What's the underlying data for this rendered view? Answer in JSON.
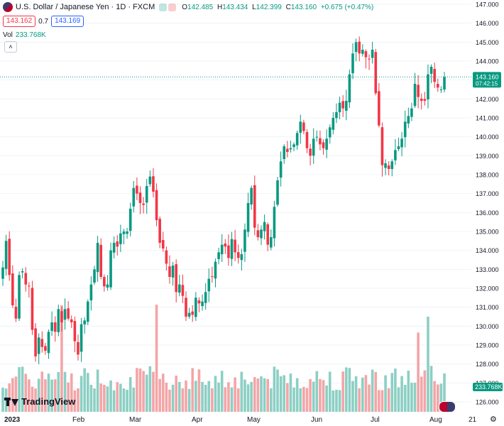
{
  "header": {
    "title": "U.S. Dollar / Japanese Yen · 1D · FXCM",
    "ohlc": [
      {
        "k": "O",
        "v": "142.485"
      },
      {
        "k": "H",
        "v": "143.434"
      },
      {
        "k": "L",
        "v": "142.399"
      },
      {
        "k": "C",
        "v": "143.160"
      },
      {
        "k": "",
        "v": "+0.675 (+0.47%)"
      }
    ]
  },
  "trade": {
    "sell": "143.162",
    "spread": "0.7",
    "buy": "143.169"
  },
  "volume": {
    "label": "Vol",
    "value": "233.768K"
  },
  "branding": {
    "name": "TradingView"
  },
  "colors": {
    "up": "#089981",
    "down": "#f23645",
    "upVol": "#8ccfc4",
    "downVol": "#f4a5a7",
    "grid": "#f0f3fa"
  },
  "chart_data": {
    "type": "candlestick",
    "title": "U.S. Dollar / Japanese Yen · 1D · FXCM",
    "ylim": [
      126,
      147
    ],
    "y_ticks": [
      "147.000",
      "146.000",
      "145.000",
      "144.000",
      "143.000",
      "142.000",
      "141.000",
      "140.000",
      "139.000",
      "138.000",
      "137.000",
      "136.000",
      "135.000",
      "134.000",
      "133.000",
      "132.000",
      "131.000",
      "130.000",
      "129.000",
      "128.000",
      "127.000",
      "126.000"
    ],
    "x_ticks": [
      "2023",
      "Feb",
      "Mar",
      "Apr",
      "May",
      "Jun",
      "Jul",
      "Aug",
      "21"
    ],
    "last_price_label": "143.160",
    "countdown_label": "07:42:15",
    "volume_label": "233.768K",
    "closes": [
      133.1,
      134.5,
      132.7,
      131.1,
      130.4,
      132.7,
      132.9,
      132.2,
      132.1,
      129.8,
      128.4,
      129.4,
      128.9,
      128.7,
      129.7,
      130.2,
      129.7,
      130.9,
      130.2,
      130.9,
      130.4,
      130.2,
      129.2,
      128.5,
      130.1,
      130.3,
      131.3,
      132.2,
      133.0,
      134.4,
      132.6,
      132.1,
      132.2,
      134.0,
      134.4,
      134.2,
      134.9,
      135.0,
      135.0,
      136.2,
      137.3,
      137.0,
      136.5,
      136.4,
      137.4,
      137.9,
      137.1,
      135.6,
      134.4,
      134.1,
      133.3,
      132.6,
      133.2,
      131.8,
      132.2,
      131.6,
      130.5,
      130.7,
      130.6,
      131.5,
      131.2,
      131.3,
      131.8,
      132.5,
      132.6,
      133.4,
      133.9,
      134.3,
      134.2,
      133.6,
      134.6,
      133.9,
      133.6,
      133.8,
      135.1,
      136.5,
      137.3,
      135.2,
      134.7,
      135.1,
      135.5,
      134.3,
      134.7,
      136.3,
      137.7,
      138.7,
      139.5,
      139.2,
      139.4,
      139.6,
      140.2,
      140.8,
      140.3,
      139.4,
      139.0,
      139.9,
      140.0,
      139.6,
      139.4,
      139.9,
      140.5,
      141.0,
      141.3,
      141.8,
      141.5,
      141.9,
      143.3,
      144.4,
      145.0,
      144.4,
      144.6,
      144.2,
      144.1,
      144.6,
      142.3,
      140.6,
      138.5,
      138.6,
      138.3,
      138.7,
      139.3,
      139.5,
      139.9,
      140.8,
      141.1,
      141.5,
      142.8,
      142.1,
      141.9,
      141.9,
      143.3,
      143.7,
      142.9,
      142.6,
      142.5,
      143.16
    ]
  }
}
